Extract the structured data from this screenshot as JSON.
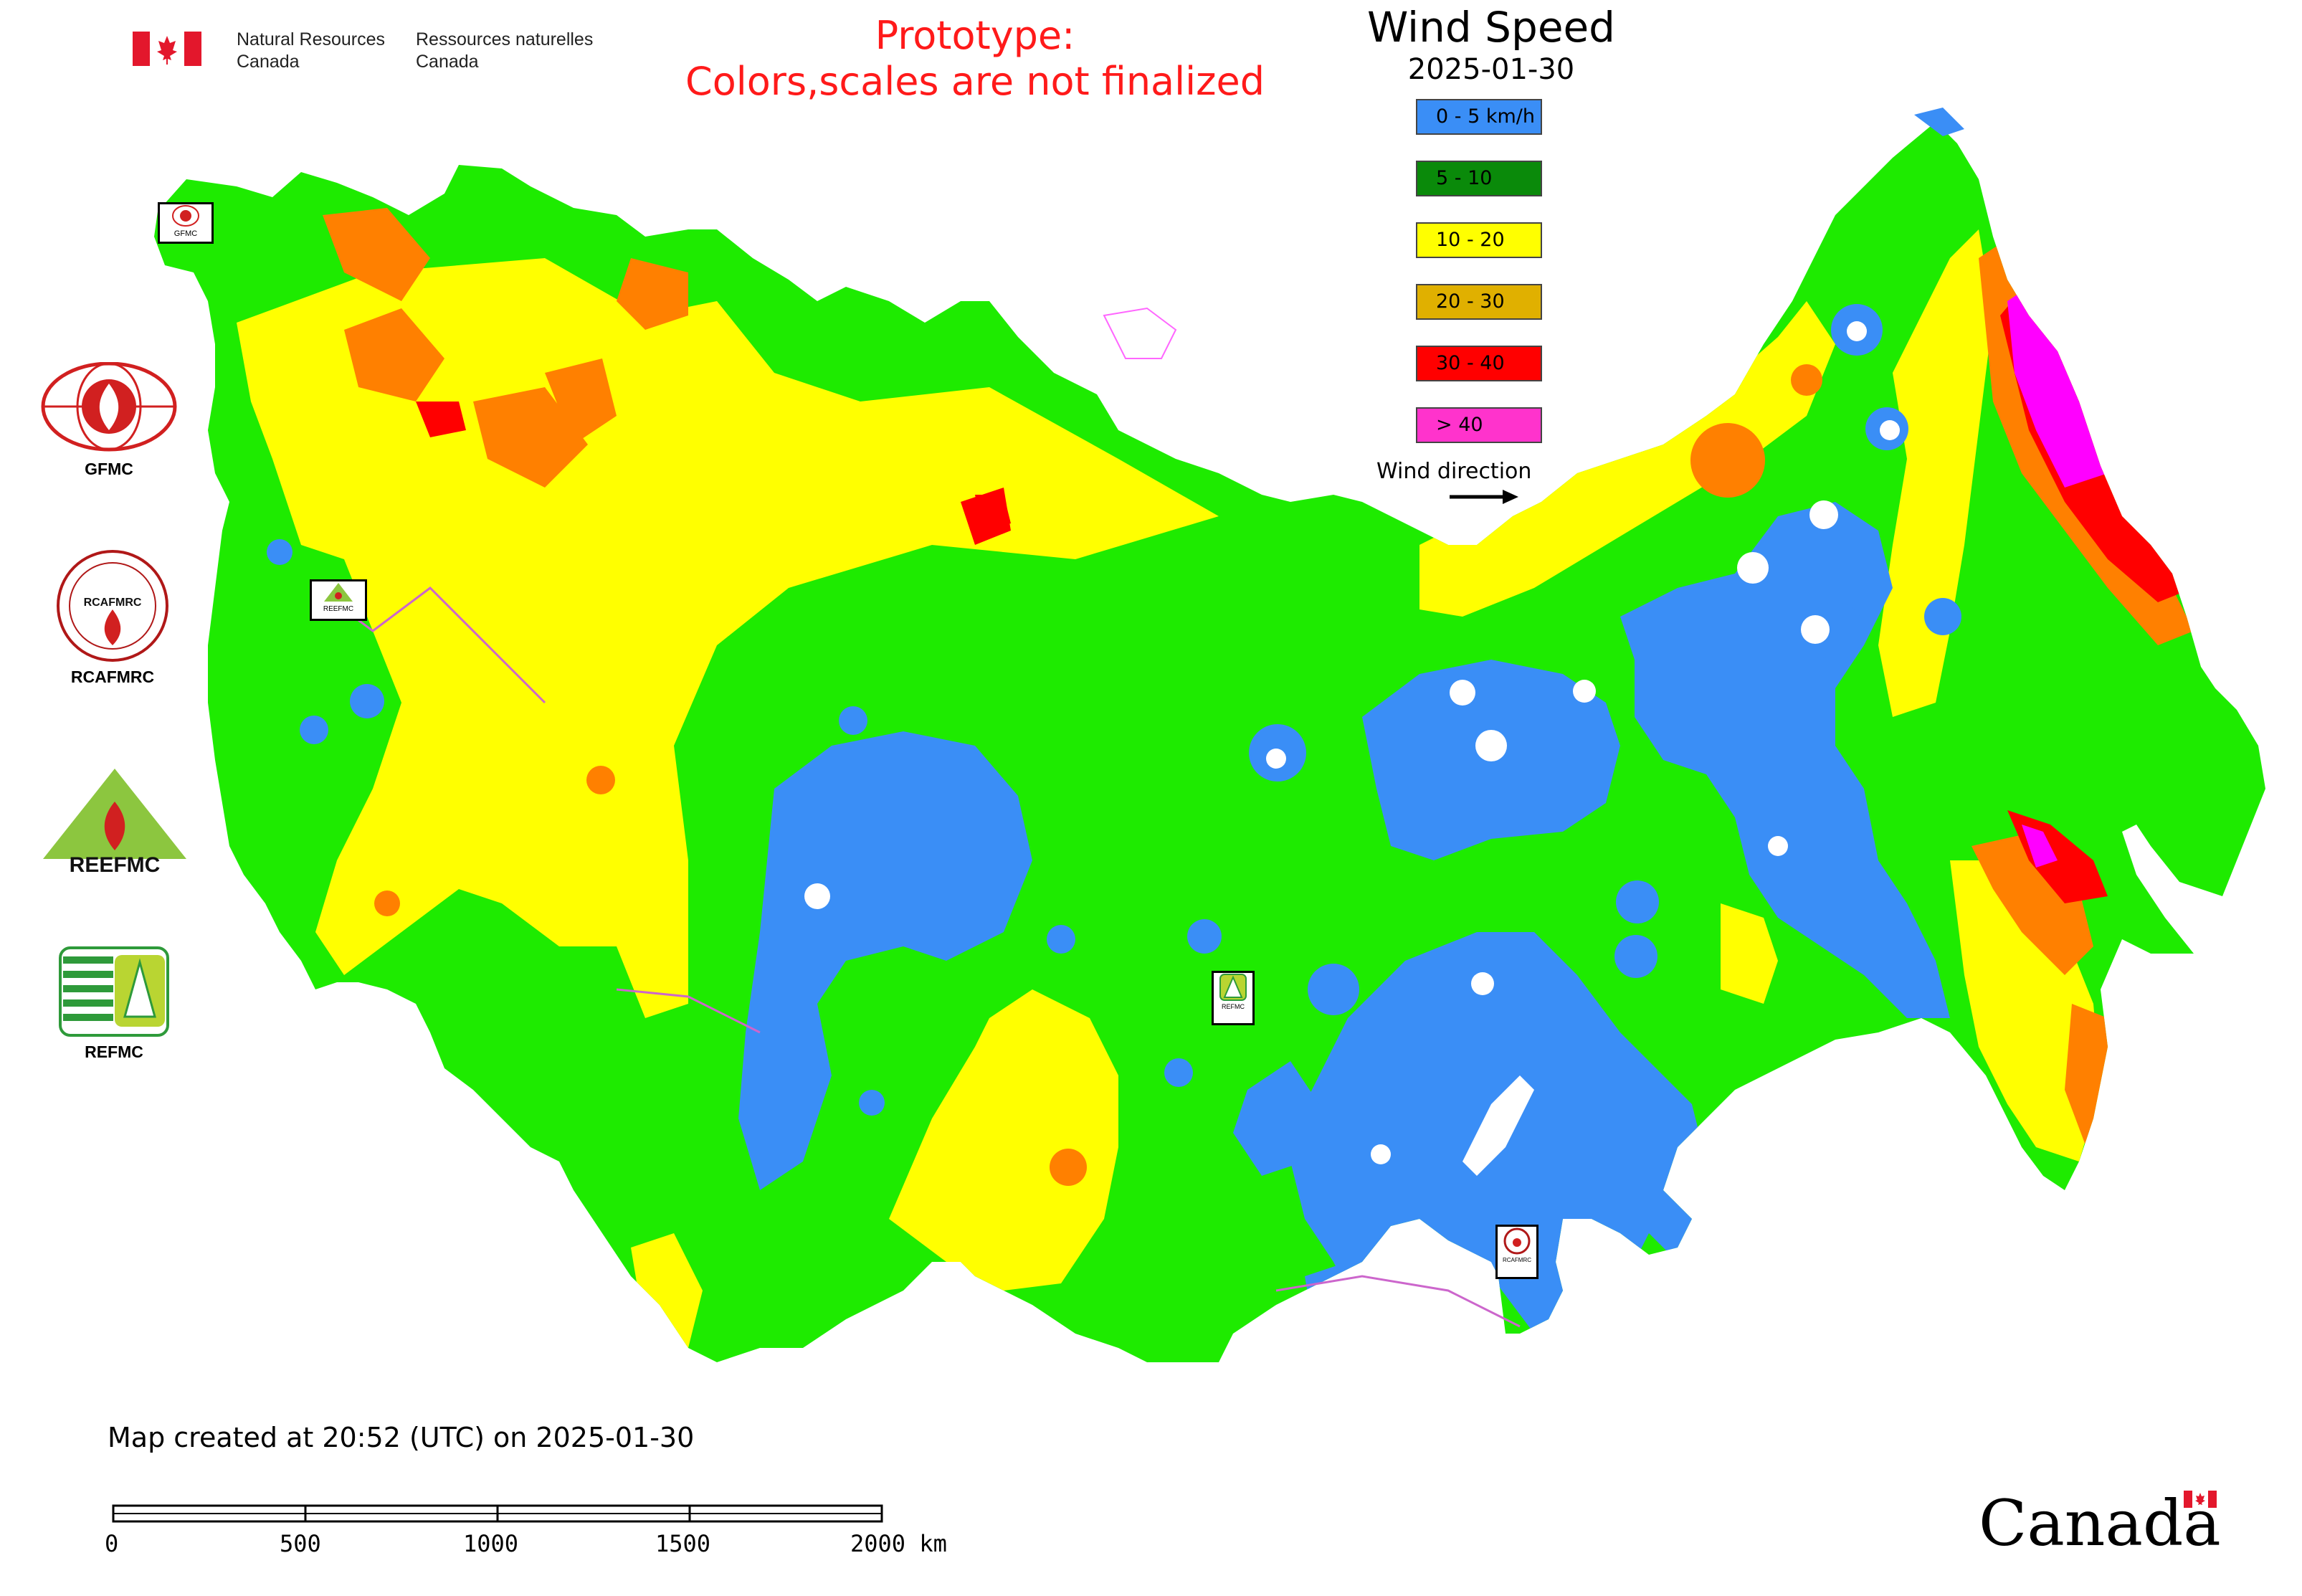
{
  "header": {
    "org_en_line1": "Natural Resources",
    "org_en_line2": "Canada",
    "org_fr_line1": "Ressources naturelles",
    "org_fr_line2": "Canada",
    "notice_line1": "Prototype:",
    "notice_line2": "Colors,scales are not finalized",
    "flag_icon": "canada-flag-icon"
  },
  "legend": {
    "title": "Wind Speed",
    "date": "2025-01-30",
    "items": [
      {
        "label": "0 - 5 km/h",
        "color": "#3a8ef6"
      },
      {
        "label": "5 - 10",
        "color": "#0a8a0a"
      },
      {
        "label": "10 - 20",
        "color": "#ffff00"
      },
      {
        "label": "20 - 30",
        "color": "#e0b000"
      },
      {
        "label": "30 - 40",
        "color": "#ff0000"
      },
      {
        "label": "> 40",
        "color": "#ff33cc"
      }
    ],
    "wind_direction_label": "Wind direction"
  },
  "side_logos": [
    {
      "name": "GFMC",
      "icon": "gfmc-logo-icon"
    },
    {
      "name": "RCAFMRC",
      "icon": "rcafmrc-logo-icon",
      "inner_text": "RCAFMRC"
    },
    {
      "name": "REEFMC",
      "icon": "reefmc-logo-icon",
      "inner_text": "REEFMC"
    },
    {
      "name": "REFMC",
      "icon": "refmc-logo-icon"
    }
  ],
  "map_markers": [
    {
      "label": "GFMC"
    },
    {
      "label": "REEFMC"
    },
    {
      "label": "REFMC"
    },
    {
      "label": "RCAFMRC"
    }
  ],
  "map_colors": {
    "green": "#1eeb00",
    "yellow": "#ffff00",
    "orange": "#ff8000",
    "red": "#ff0000",
    "magenta": "#ff00ff",
    "blue": "#3a8ef6",
    "water": "#ffffff"
  },
  "footer": {
    "created": "Map created at 20:52 (UTC) on 2025-01-30",
    "scale_labels": [
      "0",
      "500",
      "1000",
      "1500",
      "2000 km"
    ],
    "wordmark": "Canada"
  }
}
